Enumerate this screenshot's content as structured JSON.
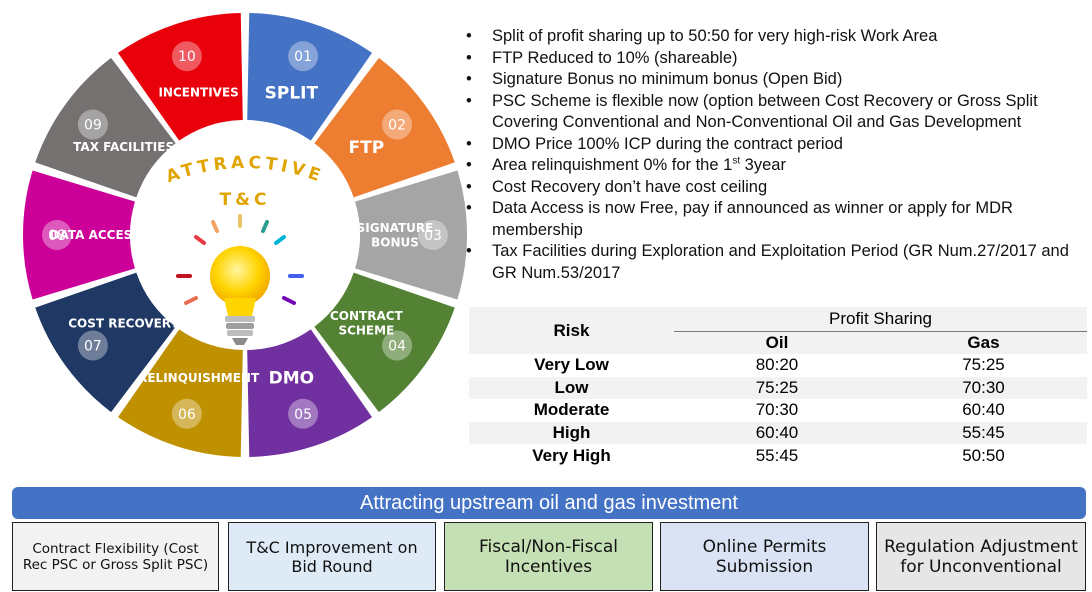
{
  "wheel": {
    "center_title_line1": "ATTRACTIVE",
    "center_title_line2": "T&C",
    "segments": [
      {
        "num": "01",
        "label": "SPLIT",
        "color": "#4472c4"
      },
      {
        "num": "02",
        "label": "FTP",
        "color": "#ed7d31"
      },
      {
        "num": "03",
        "label": "SIGNATURE\nBONUS",
        "color": "#a5a5a5"
      },
      {
        "num": "04",
        "label": "CONTRACT\nSCHEME",
        "color": "#548235"
      },
      {
        "num": "05",
        "label": "DMO",
        "color": "#7030a0"
      },
      {
        "num": "06",
        "label": "RELINQUISHMENT",
        "color": "#bf9000"
      },
      {
        "num": "07",
        "label": "COST RECOVERY",
        "color": "#1f3864"
      },
      {
        "num": "08",
        "label": "DATA ACCESS",
        "color": "#cc0099"
      },
      {
        "num": "09",
        "label": "TAX FACILITIES",
        "color": "#767171"
      },
      {
        "num": "10",
        "label": "INCENTIVES",
        "color": "#e8000b"
      }
    ]
  },
  "bullets": [
    {
      "text": "Split of profit sharing up to 50:50 for very high-risk Work Area"
    },
    {
      "text": "FTP Reduced to 10% (shareable)"
    },
    {
      "text": "Signature Bonus no minimum bonus (Open Bid)"
    },
    {
      "text": "PSC Scheme is flexible now (option between Cost Recovery  or Gross Split Covering Conventional and Non-Conventional Oil and Gas Development"
    },
    {
      "text": "DMO Price 100% ICP during the contract period"
    },
    {
      "pre": "Area relinquishment 0% for the 1",
      "sup": "st",
      "post": " 3year"
    },
    {
      "text": "Cost Recovery don’t have cost ceiling"
    },
    {
      "text": "Data Access is now Free, pay if announced as winner or apply for MDR membership"
    },
    {
      "text": "Tax Facilities during Exploration and Exploitation Period (GR Num.27/2017 and GR Num.53/2017"
    }
  ],
  "profit_table": {
    "risk_header": "Risk",
    "group_header": "Profit Sharing",
    "col_oil": "Oil",
    "col_gas": "Gas",
    "rows": [
      {
        "risk": "Very Low",
        "oil": "80:20",
        "gas": "75:25"
      },
      {
        "risk": "Low",
        "oil": "75:25",
        "gas": "70:30"
      },
      {
        "risk": "Moderate",
        "oil": "70:30",
        "gas": "60:40"
      },
      {
        "risk": "High",
        "oil": "60:40",
        "gas": "55:45"
      },
      {
        "risk": "Very High",
        "oil": "55:45",
        "gas": "50:50"
      }
    ]
  },
  "banner": "Attracting upstream oil and gas investment",
  "boxes": [
    {
      "label": "Contract Flexibility (Cost Rec PSC or Gross Split PSC)",
      "bg": "#f2f2f2"
    },
    {
      "label": "T&C Improvement on Bid Round",
      "bg": "#deebf7"
    },
    {
      "label": "Fiscal/Non-Fiscal Incentives",
      "bg": "#c5e0b4"
    },
    {
      "label": "Online Permits Submission",
      "bg": "#dae3f3"
    },
    {
      "label": "Regulation Adjustment for Unconventional",
      "bg": "#e7e6e6"
    }
  ]
}
